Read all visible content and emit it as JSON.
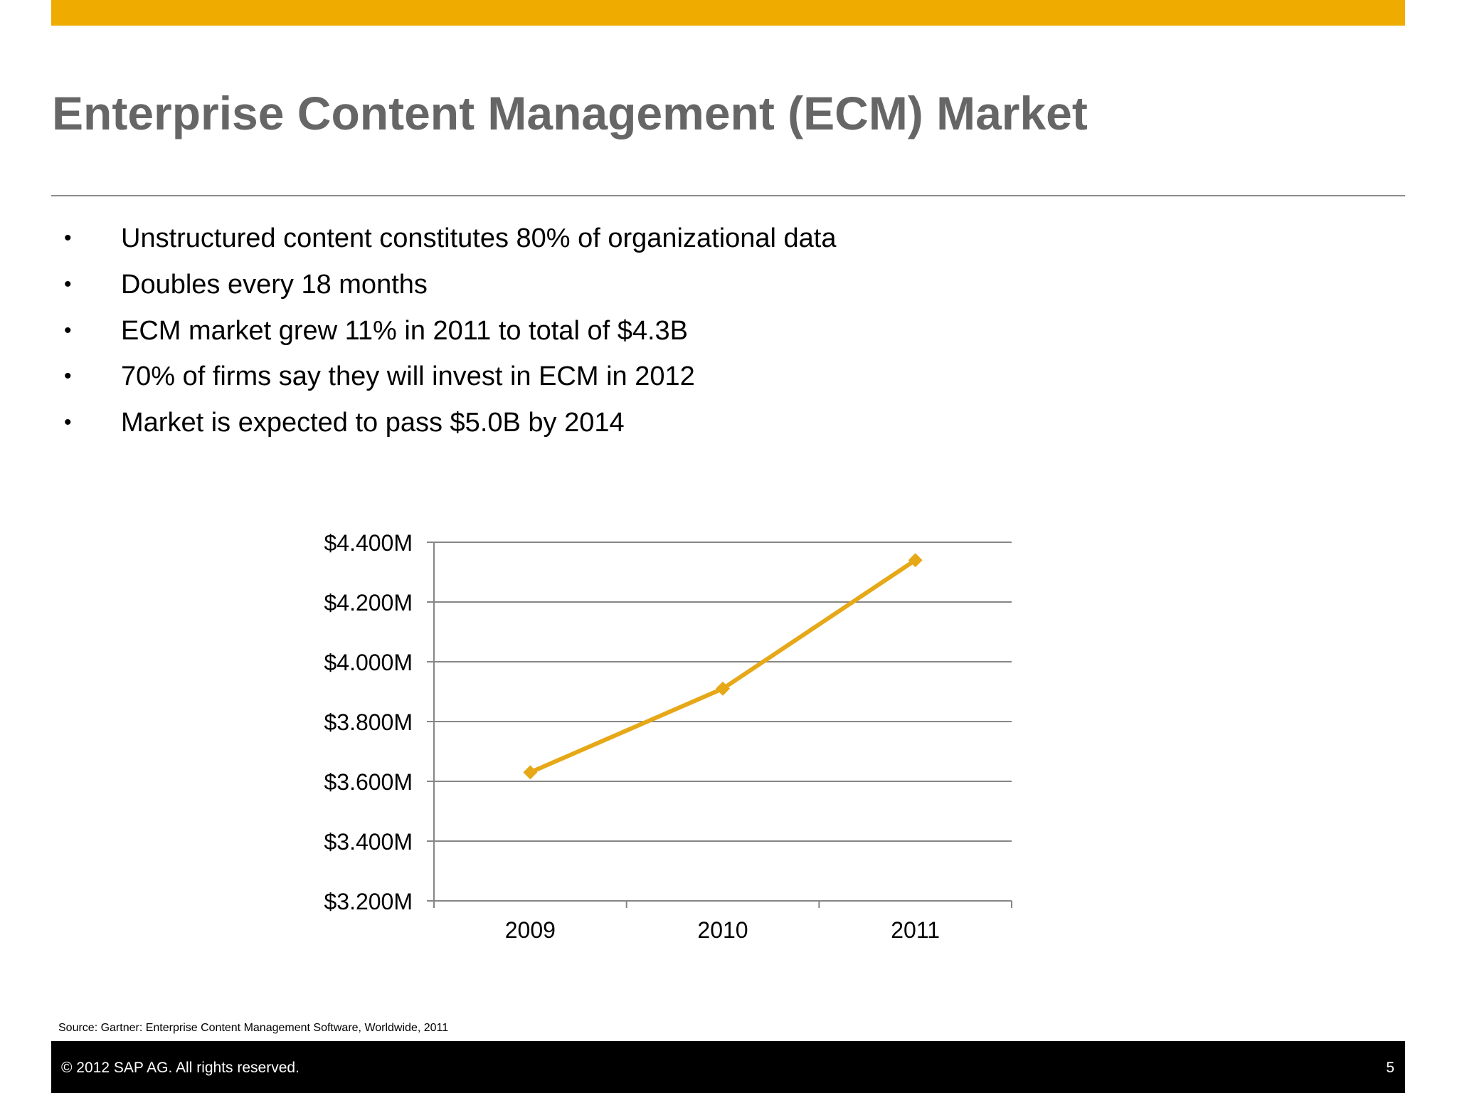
{
  "slide": {
    "title": "Enterprise Content Management (ECM) Market",
    "accent_color": "#f0ab00",
    "bullet_symbol": "•",
    "bullets": [
      "Unstructured content constitutes 80% of organizational data",
      "Doubles every 18 months",
      "ECM market grew 11% in 2011 to total of $4.3B",
      "70% of firms say they will invest in ECM in 2012",
      "Market is expected to pass $5.0B by 2014"
    ],
    "source": "Source: Gartner: Enterprise Content Management Software, Worldwide, 2011",
    "copyright": "©  2012 SAP AG. All rights reserved.",
    "page_number": "5"
  },
  "chart_data": {
    "type": "line",
    "title": "",
    "xlabel": "",
    "ylabel": "",
    "categories": [
      "2009",
      "2010",
      "2011"
    ],
    "series": [
      {
        "values": [
          3630,
          3910,
          4340
        ],
        "color": "#e6a817",
        "marker": "diamond"
      }
    ],
    "ylim": [
      3200,
      4400
    ],
    "y_ticks": [
      3200,
      3400,
      3600,
      3800,
      4000,
      4200,
      4400
    ],
    "y_tick_labels": [
      "$3.200M",
      "$3.400M",
      "$3.600M",
      "$3.800M",
      "$4.000M",
      "$4.200M",
      "$4.400M"
    ],
    "grid": true,
    "legend": "none"
  }
}
